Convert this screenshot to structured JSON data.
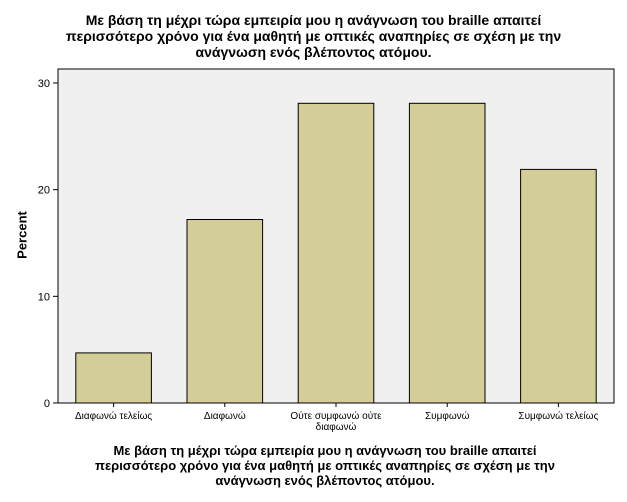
{
  "chart_data": {
    "type": "bar",
    "title": "Με βάση τη μέχρι τώρα εμπειρία μου η ανάγνωση του braille απαιτεί\nπερισσότερο χρόνο για ένα μαθητή με οπτικές αναπηρίες  σε σχέση με την\nανάγνωση ενός βλέποντος ατόμου.",
    "xlabel": "Με βάση τη μέχρι τώρα εμπειρία μου η ανάγνωση του braille απαιτεί\nπερισσότερο χρόνο για ένα μαθητή με οπτικές αναπηρίες  σε σχέση με την\nανάγνωση ενός βλέποντος ατόμου.",
    "ylabel": "Percent",
    "categories": [
      [
        "Διαφωνώ τελείως"
      ],
      [
        "Διαφωνώ"
      ],
      [
        "Ούτε συμφωνώ ούτε",
        "διαφωνώ"
      ],
      [
        "Συμφωνώ"
      ],
      [
        "Συμφωνώ τελείως"
      ]
    ],
    "values": [
      4.7,
      17.2,
      28.1,
      28.1,
      21.9
    ],
    "ylim": [
      0,
      30
    ],
    "yticks": [
      0,
      10,
      20,
      30
    ],
    "grid": false,
    "colors": {
      "bar": "#d3ce97",
      "plot_bg": "#f0f0f0",
      "outline": "#000000"
    }
  }
}
